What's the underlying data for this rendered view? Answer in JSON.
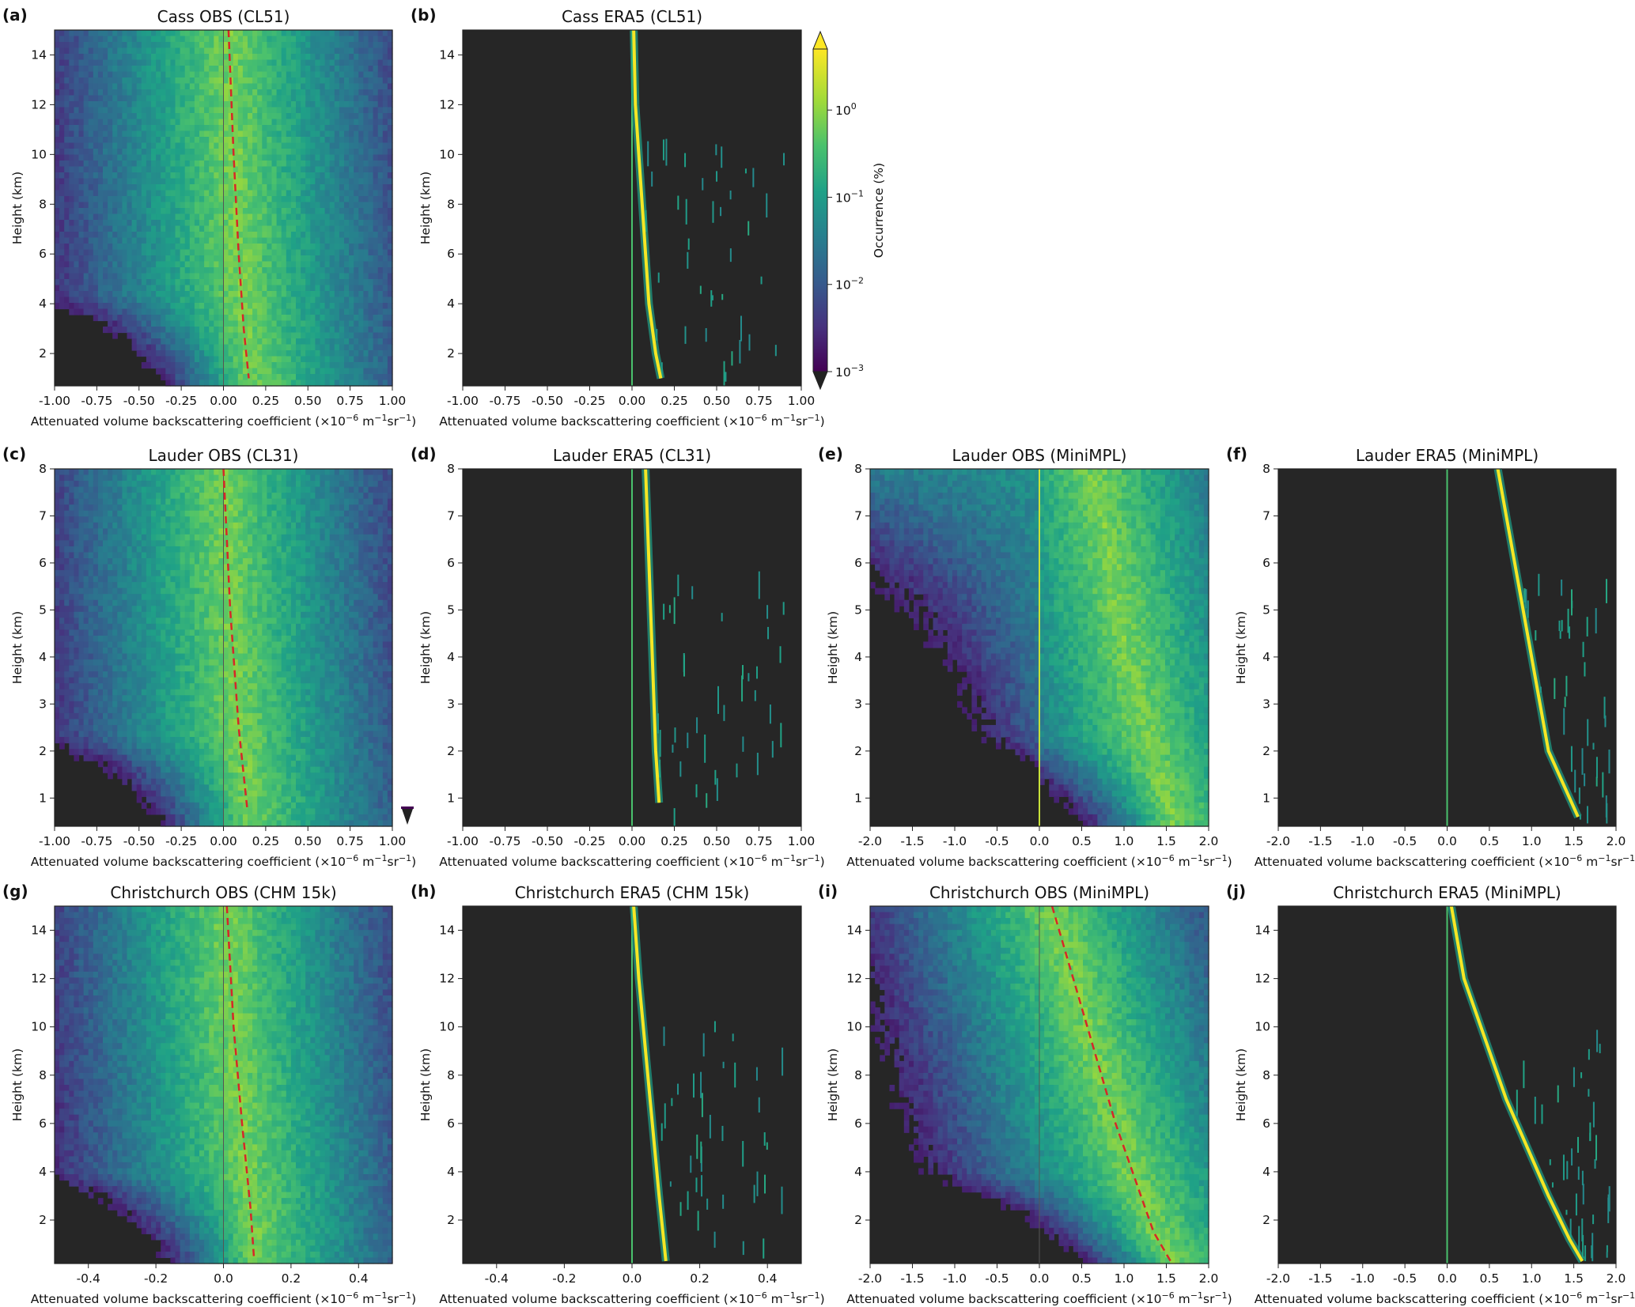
{
  "chart_data": [
    {
      "id": "a",
      "type": "heatmap",
      "letter": "(a)",
      "title": "Cass OBS (CL51)",
      "style": "obs",
      "xlabel_main": "Attenuated volume backscattering coefficient (×10",
      "xlabel_sup1": "−6",
      "xlabel_mid": " m",
      "xlabel_sup2": "−1",
      "xlabel_mid2": "sr",
      "xlabel_sup3": "−1",
      "xlabel_end": ")",
      "ylabel": "Height (km)",
      "xlim": [
        -1.0,
        1.0
      ],
      "ylim": [
        0.7,
        15.0
      ],
      "xticks": [
        "-1.00",
        "-0.75",
        "-0.50",
        "-0.25",
        "0.00",
        "0.25",
        "0.50",
        "0.75",
        "1.00"
      ],
      "yticks": [
        "2",
        "4",
        "6",
        "8",
        "10",
        "12",
        "14"
      ],
      "mean_profile": [
        [
          0.03,
          15.0
        ],
        [
          0.06,
          10.0
        ],
        [
          0.09,
          6.0
        ],
        [
          0.12,
          3.0
        ],
        [
          0.15,
          1.0
        ]
      ],
      "has_zero_line": true
    },
    {
      "id": "b",
      "type": "heatmap",
      "letter": "(b)",
      "title": "Cass ERA5 (CL51)",
      "style": "era",
      "ylabel": "Height (km)",
      "xlim": [
        -1.0,
        1.0
      ],
      "ylim": [
        0.7,
        15.0
      ],
      "xticks": [
        "-1.00",
        "-0.75",
        "-0.50",
        "-0.25",
        "0.00",
        "0.25",
        "0.50",
        "0.75",
        "1.00"
      ],
      "yticks": [
        "2",
        "4",
        "6",
        "8",
        "10",
        "12",
        "14"
      ],
      "era_line": [
        [
          0.01,
          15.0
        ],
        [
          0.02,
          12.0
        ],
        [
          0.04,
          10.0
        ],
        [
          0.07,
          7.0
        ],
        [
          0.1,
          4.0
        ],
        [
          0.14,
          2.0
        ],
        [
          0.17,
          1.0
        ]
      ]
    },
    {
      "id": "c",
      "type": "heatmap",
      "letter": "(c)",
      "title": "Lauder OBS (CL31)",
      "style": "obs",
      "ylabel": "Height (km)",
      "xlim": [
        -1.0,
        1.0
      ],
      "ylim": [
        0.4,
        8.0
      ],
      "xticks": [
        "-1.00",
        "-0.75",
        "-0.50",
        "-0.25",
        "0.00",
        "0.25",
        "0.50",
        "0.75",
        "1.00"
      ],
      "yticks": [
        "1",
        "2",
        "3",
        "4",
        "5",
        "6",
        "7",
        "8"
      ],
      "mean_profile": [
        [
          0.0,
          8.0
        ],
        [
          0.04,
          5.0
        ],
        [
          0.09,
          2.5
        ],
        [
          0.14,
          0.8
        ]
      ],
      "has_zero_line": true
    },
    {
      "id": "d",
      "type": "heatmap",
      "letter": "(d)",
      "title": "Lauder ERA5 (CL31)",
      "style": "era",
      "ylabel": "Height (km)",
      "xlim": [
        -1.0,
        1.0
      ],
      "ylim": [
        0.4,
        8.0
      ],
      "xticks": [
        "-1.00",
        "-0.75",
        "-0.50",
        "-0.25",
        "0.00",
        "0.25",
        "0.50",
        "0.75",
        "1.00"
      ],
      "yticks": [
        "1",
        "2",
        "3",
        "4",
        "5",
        "6",
        "7",
        "8"
      ],
      "era_line": [
        [
          0.08,
          8.0
        ],
        [
          0.1,
          6.0
        ],
        [
          0.12,
          4.0
        ],
        [
          0.14,
          2.0
        ],
        [
          0.16,
          0.9
        ]
      ]
    },
    {
      "id": "e",
      "type": "heatmap",
      "letter": "(e)",
      "title": "Lauder OBS (MiniMPL)",
      "style": "obs",
      "ylabel": "Height (km)",
      "xlim": [
        -2.0,
        2.0
      ],
      "ylim": [
        0.4,
        8.0
      ],
      "xticks": [
        "-2.0",
        "-1.5",
        "-1.0",
        "-0.5",
        "0.0",
        "0.5",
        "1.0",
        "1.5",
        "2.0"
      ],
      "yticks": [
        "1",
        "2",
        "3",
        "4",
        "5",
        "6",
        "7",
        "8"
      ],
      "bright_profile": [
        [
          0.65,
          8.0
        ],
        [
          0.85,
          6.0
        ],
        [
          1.05,
          4.0
        ],
        [
          1.3,
          2.0
        ],
        [
          1.55,
          0.6
        ]
      ],
      "has_zero_line": true
    },
    {
      "id": "f",
      "type": "heatmap",
      "letter": "(f)",
      "title": "Lauder ERA5 (MiniMPL)",
      "style": "era",
      "ylabel": "Height (km)",
      "xlim": [
        -2.0,
        2.0
      ],
      "ylim": [
        0.4,
        8.0
      ],
      "xticks": [
        "-2.0",
        "-1.5",
        "-1.0",
        "-0.5",
        "0.0",
        "0.5",
        "1.0",
        "1.5",
        "2.0"
      ],
      "yticks": [
        "1",
        "2",
        "3",
        "4",
        "5",
        "6",
        "7",
        "8"
      ],
      "era_line": [
        [
          0.6,
          8.0
        ],
        [
          0.7,
          7.0
        ],
        [
          0.8,
          6.0
        ],
        [
          0.9,
          5.0
        ],
        [
          1.0,
          4.0
        ],
        [
          1.1,
          3.0
        ],
        [
          1.2,
          2.0
        ],
        [
          1.4,
          1.2
        ],
        [
          1.55,
          0.6
        ]
      ]
    },
    {
      "id": "g",
      "type": "heatmap",
      "letter": "(g)",
      "title": "Christchurch OBS (CHM 15k)",
      "style": "obs",
      "ylabel": "Height (km)",
      "xlim": [
        -0.5,
        0.5
      ],
      "ylim": [
        0.2,
        15.0
      ],
      "xticks": [
        "-0.4",
        "-0.2",
        "0.0",
        "0.2",
        "0.4"
      ],
      "xtick_vals": [
        -0.4,
        -0.2,
        0.0,
        0.2,
        0.4
      ],
      "yticks": [
        "2",
        "4",
        "6",
        "8",
        "10",
        "12",
        "14"
      ],
      "mean_profile": [
        [
          0.01,
          15.0
        ],
        [
          0.03,
          10.0
        ],
        [
          0.055,
          6.0
        ],
        [
          0.08,
          2.5
        ],
        [
          0.09,
          0.5
        ]
      ],
      "has_zero_line": true
    },
    {
      "id": "h",
      "type": "heatmap",
      "letter": "(h)",
      "title": "Christchurch ERA5 (CHM 15k)",
      "style": "era",
      "ylabel": "Height (km)",
      "xlim": [
        -0.5,
        0.5
      ],
      "ylim": [
        0.2,
        15.0
      ],
      "xticks": [
        "-0.4",
        "-0.2",
        "0.0",
        "0.2",
        "0.4"
      ],
      "xtick_vals": [
        -0.4,
        -0.2,
        0.0,
        0.2,
        0.4
      ],
      "yticks": [
        "2",
        "4",
        "6",
        "8",
        "10",
        "12",
        "14"
      ],
      "era_line": [
        [
          0.005,
          15.0
        ],
        [
          0.02,
          12.0
        ],
        [
          0.04,
          9.0
        ],
        [
          0.06,
          6.0
        ],
        [
          0.08,
          3.0
        ],
        [
          0.1,
          0.3
        ]
      ]
    },
    {
      "id": "i",
      "type": "heatmap",
      "letter": "(i)",
      "title": "Christchurch OBS (MiniMPL)",
      "style": "obs",
      "ylabel": "Height (km)",
      "xlim": [
        -2.0,
        2.0
      ],
      "ylim": [
        0.2,
        15.0
      ],
      "xticks": [
        "-2.0",
        "-1.5",
        "-1.0",
        "-0.5",
        "0.0",
        "0.5",
        "1.0",
        "1.5",
        "2.0"
      ],
      "yticks": [
        "2",
        "4",
        "6",
        "8",
        "10",
        "12",
        "14"
      ],
      "mean_profile": [
        [
          0.15,
          15.0
        ],
        [
          0.4,
          12.0
        ],
        [
          0.65,
          9.0
        ],
        [
          0.9,
          6.0
        ],
        [
          1.15,
          3.5
        ],
        [
          1.35,
          1.5
        ],
        [
          1.55,
          0.3
        ]
      ],
      "has_zero_line": true
    },
    {
      "id": "j",
      "type": "heatmap",
      "letter": "(j)",
      "title": "Christchurch ERA5 (MiniMPL)",
      "style": "era",
      "ylabel": "Height (km)",
      "xlim": [
        -2.0,
        2.0
      ],
      "ylim": [
        0.2,
        15.0
      ],
      "xticks": [
        "-2.0",
        "-1.5",
        "-1.0",
        "-0.5",
        "0.0",
        "0.5",
        "1.0",
        "1.5",
        "2.0"
      ],
      "yticks": [
        "2",
        "4",
        "6",
        "8",
        "10",
        "12",
        "14"
      ],
      "era_line": [
        [
          0.05,
          15.0
        ],
        [
          0.2,
          12.0
        ],
        [
          0.45,
          9.5
        ],
        [
          0.7,
          7.0
        ],
        [
          0.95,
          5.0
        ],
        [
          1.2,
          3.0
        ],
        [
          1.45,
          1.2
        ],
        [
          1.6,
          0.3
        ]
      ]
    }
  ],
  "colorbar": {
    "label": "Occurrence (%)",
    "ticks": [
      {
        "base": "10",
        "exp": "0",
        "v": 0
      },
      {
        "base": "10",
        "exp": "−1",
        "v": -1
      },
      {
        "base": "10",
        "exp": "−2",
        "v": -2
      },
      {
        "base": "10",
        "exp": "−3",
        "v": -3
      }
    ],
    "range": [
      -3,
      0.7
    ],
    "colormap": "viridis"
  },
  "colors": {
    "background_era": "#262626",
    "mean_line": "#d62728",
    "bright": "#f5e625"
  }
}
